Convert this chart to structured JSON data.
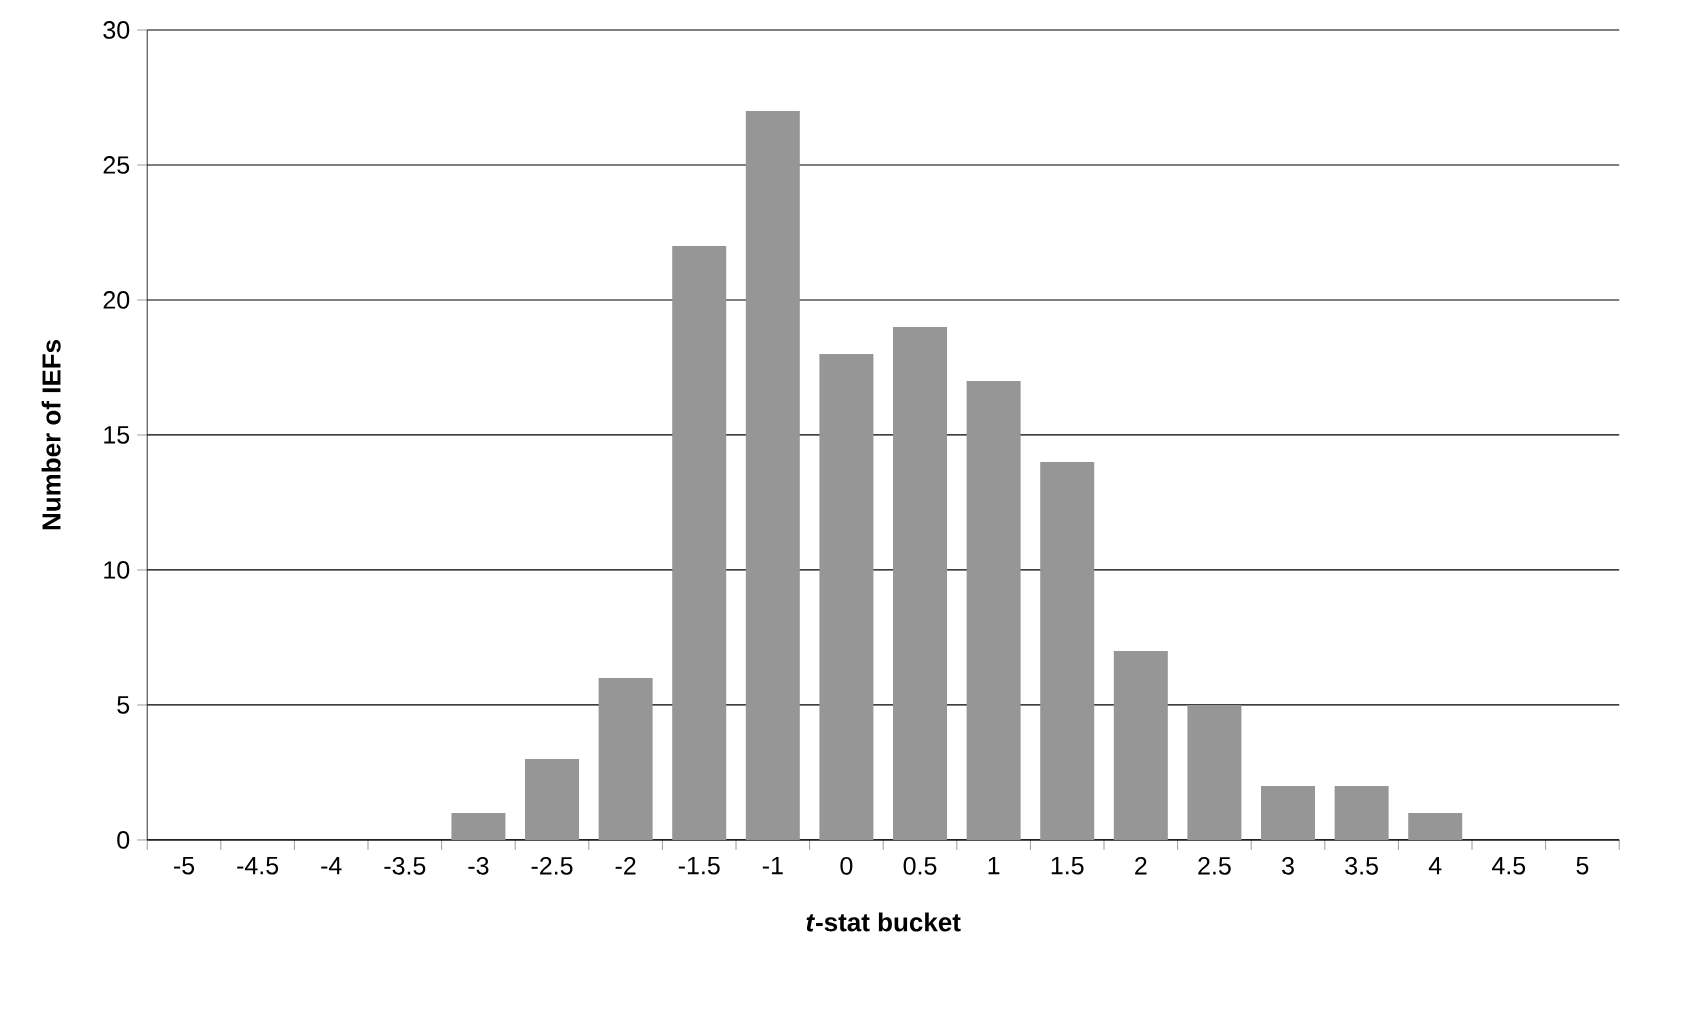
{
  "chart_data": {
    "type": "bar",
    "xlabel": "*t*-stat bucket",
    "ylabel": "Number of IEFs",
    "categories": [
      "-5",
      "-4.5",
      "-4",
      "-3.5",
      "-3",
      "-2.5",
      "-2",
      "-1.5",
      "-1",
      "0",
      "0.5",
      "1",
      "1.5",
      "2",
      "2.5",
      "3",
      "3.5",
      "4",
      "4.5",
      "5"
    ],
    "values": [
      0,
      0,
      0,
      0,
      1,
      3,
      6,
      22,
      27,
      18,
      19,
      17,
      14,
      7,
      5,
      2,
      2,
      1,
      0,
      0
    ],
    "color": "#969696",
    "ylim": [
      0,
      30
    ],
    "yticks": [
      0,
      5,
      10,
      15,
      20,
      25,
      30
    ],
    "grid": "y"
  }
}
